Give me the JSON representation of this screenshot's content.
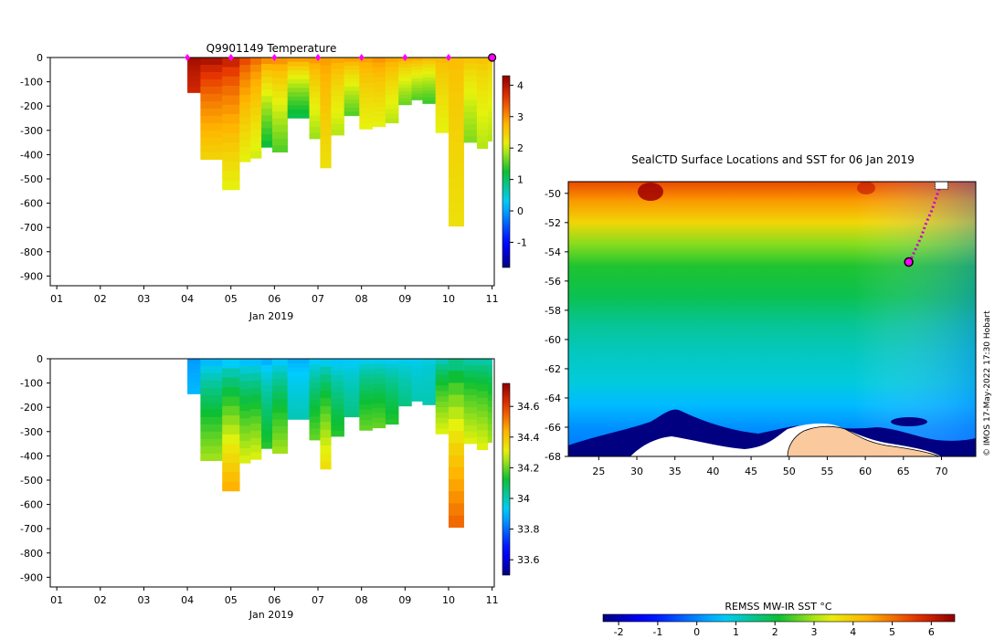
{
  "chart_data": [
    {
      "id": "temperature",
      "type": "heatmap",
      "title": "Q9901149  Temperature",
      "xlabel": "Jan 2019",
      "ylabel": "",
      "x_tick_labels": [
        "01",
        "02",
        "03",
        "04",
        "05",
        "06",
        "07",
        "08",
        "09",
        "10",
        "11"
      ],
      "y_ticks": [
        0,
        -100,
        -200,
        -300,
        -400,
        -500,
        -600,
        -700,
        -800,
        -900
      ],
      "y_tick_labels": [
        "0",
        "-100",
        "-200",
        "-300",
        "-400",
        "-500",
        "-600",
        "-700",
        "-800",
        "-900"
      ],
      "xlim": [
        0.85,
        11.05
      ],
      "ylim": [
        -940,
        0
      ],
      "colorbar": {
        "vmin": -1.8,
        "vmax": 4.3,
        "ticks": [
          -1,
          0,
          1,
          2,
          3,
          4
        ],
        "tick_labels": [
          "-1",
          "0",
          "1",
          "2",
          "3",
          "4"
        ],
        "colormap": "jet"
      },
      "surface_markers_day": [
        4,
        5,
        6,
        7,
        8,
        9,
        10
      ],
      "last_position_marker_day": 11,
      "profiles": [
        {
          "day": 4.0,
          "depth": 145,
          "top": 4.2,
          "bottom": 3.8
        },
        {
          "day": 4.3,
          "depth": 420,
          "top": 4.3,
          "bottom": 2.4
        },
        {
          "day": 4.8,
          "depth": 545,
          "top": 4.1,
          "bottom": 2.1
        },
        {
          "day": 5.2,
          "depth": 430,
          "top": 3.7,
          "bottom": 2.1
        },
        {
          "day": 5.45,
          "depth": 415,
          "top": 3.4,
          "bottom": 2.0
        },
        {
          "day": 5.7,
          "depth": 370,
          "top": 3.3,
          "bottom": 1.2
        },
        {
          "day": 5.95,
          "depth": 390,
          "top": 3.2,
          "bottom": 1.5
        },
        {
          "day": 6.3,
          "depth": 250,
          "top": 3.2,
          "bottom": 1.1
        },
        {
          "day": 6.8,
          "depth": 335,
          "top": 3.1,
          "bottom": 1.8
        },
        {
          "day": 7.05,
          "depth": 455,
          "top": 3.0,
          "bottom": 2.3
        },
        {
          "day": 7.3,
          "depth": 320,
          "top": 3.0,
          "bottom": 1.9
        },
        {
          "day": 7.6,
          "depth": 240,
          "top": 3.1,
          "bottom": 1.5
        },
        {
          "day": 7.95,
          "depth": 295,
          "top": 3.0,
          "bottom": 2.1
        },
        {
          "day": 8.25,
          "depth": 285,
          "top": 3.1,
          "bottom": 2.1
        },
        {
          "day": 8.55,
          "depth": 270,
          "top": 3.0,
          "bottom": 1.9
        },
        {
          "day": 8.85,
          "depth": 195,
          "top": 3.0,
          "bottom": 1.6
        },
        {
          "day": 9.15,
          "depth": 175,
          "top": 3.0,
          "bottom": 1.5
        },
        {
          "day": 9.4,
          "depth": 190,
          "top": 2.9,
          "bottom": 1.4
        },
        {
          "day": 9.7,
          "depth": 310,
          "top": 2.8,
          "bottom": 2.1
        },
        {
          "day": 10.0,
          "depth": 695,
          "top": 2.7,
          "bottom": 2.3
        },
        {
          "day": 10.35,
          "depth": 350,
          "top": 2.7,
          "bottom": 1.7
        },
        {
          "day": 10.65,
          "depth": 375,
          "top": 2.7,
          "bottom": 1.9
        },
        {
          "day": 10.9,
          "depth": 345,
          "top": 2.6,
          "bottom": 1.9
        }
      ]
    },
    {
      "id": "salinity",
      "type": "heatmap",
      "title": "",
      "xlabel": "Jan 2019",
      "ylabel": "",
      "x_tick_labels": [
        "01",
        "02",
        "03",
        "04",
        "05",
        "06",
        "07",
        "08",
        "09",
        "10",
        "11"
      ],
      "y_ticks": [
        0,
        -100,
        -200,
        -300,
        -400,
        -500,
        -600,
        -700,
        -800,
        -900
      ],
      "y_tick_labels": [
        "0",
        "-100",
        "-200",
        "-300",
        "-400",
        "-500",
        "-600",
        "-700",
        "-800",
        "-900"
      ],
      "xlim": [
        0.85,
        11.05
      ],
      "ylim": [
        -940,
        0
      ],
      "colorbar": {
        "vmin": 33.5,
        "vmax": 34.75,
        "ticks": [
          33.6,
          33.8,
          34,
          34.2,
          34.4,
          34.6
        ],
        "tick_labels": [
          "33.6",
          "33.8",
          "34",
          "34.2",
          "34.4",
          "34.6"
        ],
        "colormap": "jet"
      },
      "profiles": [
        {
          "day": 4.0,
          "depth": 145,
          "top": 33.85,
          "bottom": 33.9
        },
        {
          "day": 4.3,
          "depth": 420,
          "top": 33.85,
          "bottom": 34.25
        },
        {
          "day": 4.8,
          "depth": 545,
          "top": 33.85,
          "bottom": 34.45
        },
        {
          "day": 5.2,
          "depth": 430,
          "top": 33.85,
          "bottom": 34.3
        },
        {
          "day": 5.45,
          "depth": 415,
          "top": 33.85,
          "bottom": 34.3
        },
        {
          "day": 5.7,
          "depth": 370,
          "top": 33.85,
          "bottom": 34.15
        },
        {
          "day": 5.95,
          "depth": 390,
          "top": 33.87,
          "bottom": 34.25
        },
        {
          "day": 6.3,
          "depth": 250,
          "top": 33.87,
          "bottom": 34.0
        },
        {
          "day": 6.8,
          "depth": 335,
          "top": 33.88,
          "bottom": 34.2
        },
        {
          "day": 7.05,
          "depth": 455,
          "top": 33.88,
          "bottom": 34.35
        },
        {
          "day": 7.3,
          "depth": 320,
          "top": 33.88,
          "bottom": 34.15
        },
        {
          "day": 7.6,
          "depth": 240,
          "top": 33.9,
          "bottom": 34.05
        },
        {
          "day": 7.95,
          "depth": 295,
          "top": 33.9,
          "bottom": 34.2
        },
        {
          "day": 8.25,
          "depth": 285,
          "top": 33.9,
          "bottom": 34.2
        },
        {
          "day": 8.55,
          "depth": 270,
          "top": 33.9,
          "bottom": 34.15
        },
        {
          "day": 8.85,
          "depth": 195,
          "top": 33.92,
          "bottom": 34.05
        },
        {
          "day": 9.15,
          "depth": 175,
          "top": 33.93,
          "bottom": 34.0
        },
        {
          "day": 9.4,
          "depth": 190,
          "top": 33.95,
          "bottom": 34.0
        },
        {
          "day": 9.7,
          "depth": 310,
          "top": 33.95,
          "bottom": 34.3
        },
        {
          "day": 10.0,
          "depth": 695,
          "top": 33.97,
          "bottom": 34.55
        },
        {
          "day": 10.35,
          "depth": 350,
          "top": 33.97,
          "bottom": 34.3
        },
        {
          "day": 10.65,
          "depth": 375,
          "top": 33.97,
          "bottom": 34.3
        },
        {
          "day": 10.9,
          "depth": 345,
          "top": 33.97,
          "bottom": 34.25
        }
      ]
    },
    {
      "id": "sst-map",
      "type": "heatmap",
      "title": "SealCTD Surface Locations and SST for 06 Jan 2019",
      "xlabel": "",
      "ylabel": "",
      "x_ticks": [
        25,
        30,
        35,
        40,
        45,
        50,
        55,
        60,
        65,
        70
      ],
      "x_tick_labels": [
        "25",
        "30",
        "35",
        "40",
        "45",
        "50",
        "55",
        "60",
        "65",
        "70"
      ],
      "y_ticks": [
        -50,
        -52,
        -54,
        -56,
        -58,
        -60,
        -62,
        -64,
        -66,
        -68
      ],
      "y_tick_labels": [
        "-50",
        "-52",
        "-54",
        "-56",
        "-58",
        "-60",
        "-62",
        "-64",
        "-66",
        "-68"
      ],
      "xlim": [
        21,
        74.5
      ],
      "ylim": [
        -68,
        -49.2
      ],
      "sst_gradient": [
        {
          "lat": -49.2,
          "sst": 5.4
        },
        {
          "lat": -50.5,
          "sst": 4.6
        },
        {
          "lat": -52,
          "sst": 3.8
        },
        {
          "lat": -53.5,
          "sst": 2.8
        },
        {
          "lat": -55,
          "sst": 2.2
        },
        {
          "lat": -57,
          "sst": 1.9
        },
        {
          "lat": -59,
          "sst": 1.4
        },
        {
          "lat": -61,
          "sst": 1.1
        },
        {
          "lat": -63,
          "sst": 0.9
        },
        {
          "lat": -64.5,
          "sst": 0.5
        },
        {
          "lat": -66,
          "sst": 0.1
        },
        {
          "lat": -68,
          "sst": -0.2
        }
      ],
      "track": [
        {
          "lon": 69.9,
          "lat": -49.4
        },
        {
          "lon": 69.3,
          "lat": -50.3
        },
        {
          "lon": 68.7,
          "lat": -51.2
        },
        {
          "lon": 68.0,
          "lat": -52.0
        },
        {
          "lon": 67.4,
          "lat": -52.9
        },
        {
          "lon": 66.7,
          "lat": -53.7
        },
        {
          "lon": 66.0,
          "lat": -54.5
        }
      ],
      "current_position": {
        "lon": 65.7,
        "lat": -54.7
      },
      "start_position": {
        "lon": 70.0,
        "lat": -49.4
      },
      "land_label": "",
      "colorbar": {
        "label": "REMSS MW-IR SST °C",
        "vmin": -2.4,
        "vmax": 6.6,
        "ticks": [
          -2,
          -1,
          0,
          1,
          2,
          3,
          4,
          5,
          6
        ],
        "tick_labels": [
          "-2",
          "-1",
          "0",
          "1",
          "2",
          "3",
          "4",
          "5",
          "6"
        ],
        "colormap": "jet"
      },
      "credit": "© IMOS 17-May-2022 17:30 Hobart"
    }
  ],
  "colors": {
    "surface_marker": "#ff00ff",
    "track": "#cc00cc",
    "land": "#fbc99e",
    "sea_ice": "#ffffff",
    "coast_ice": "#000080"
  }
}
